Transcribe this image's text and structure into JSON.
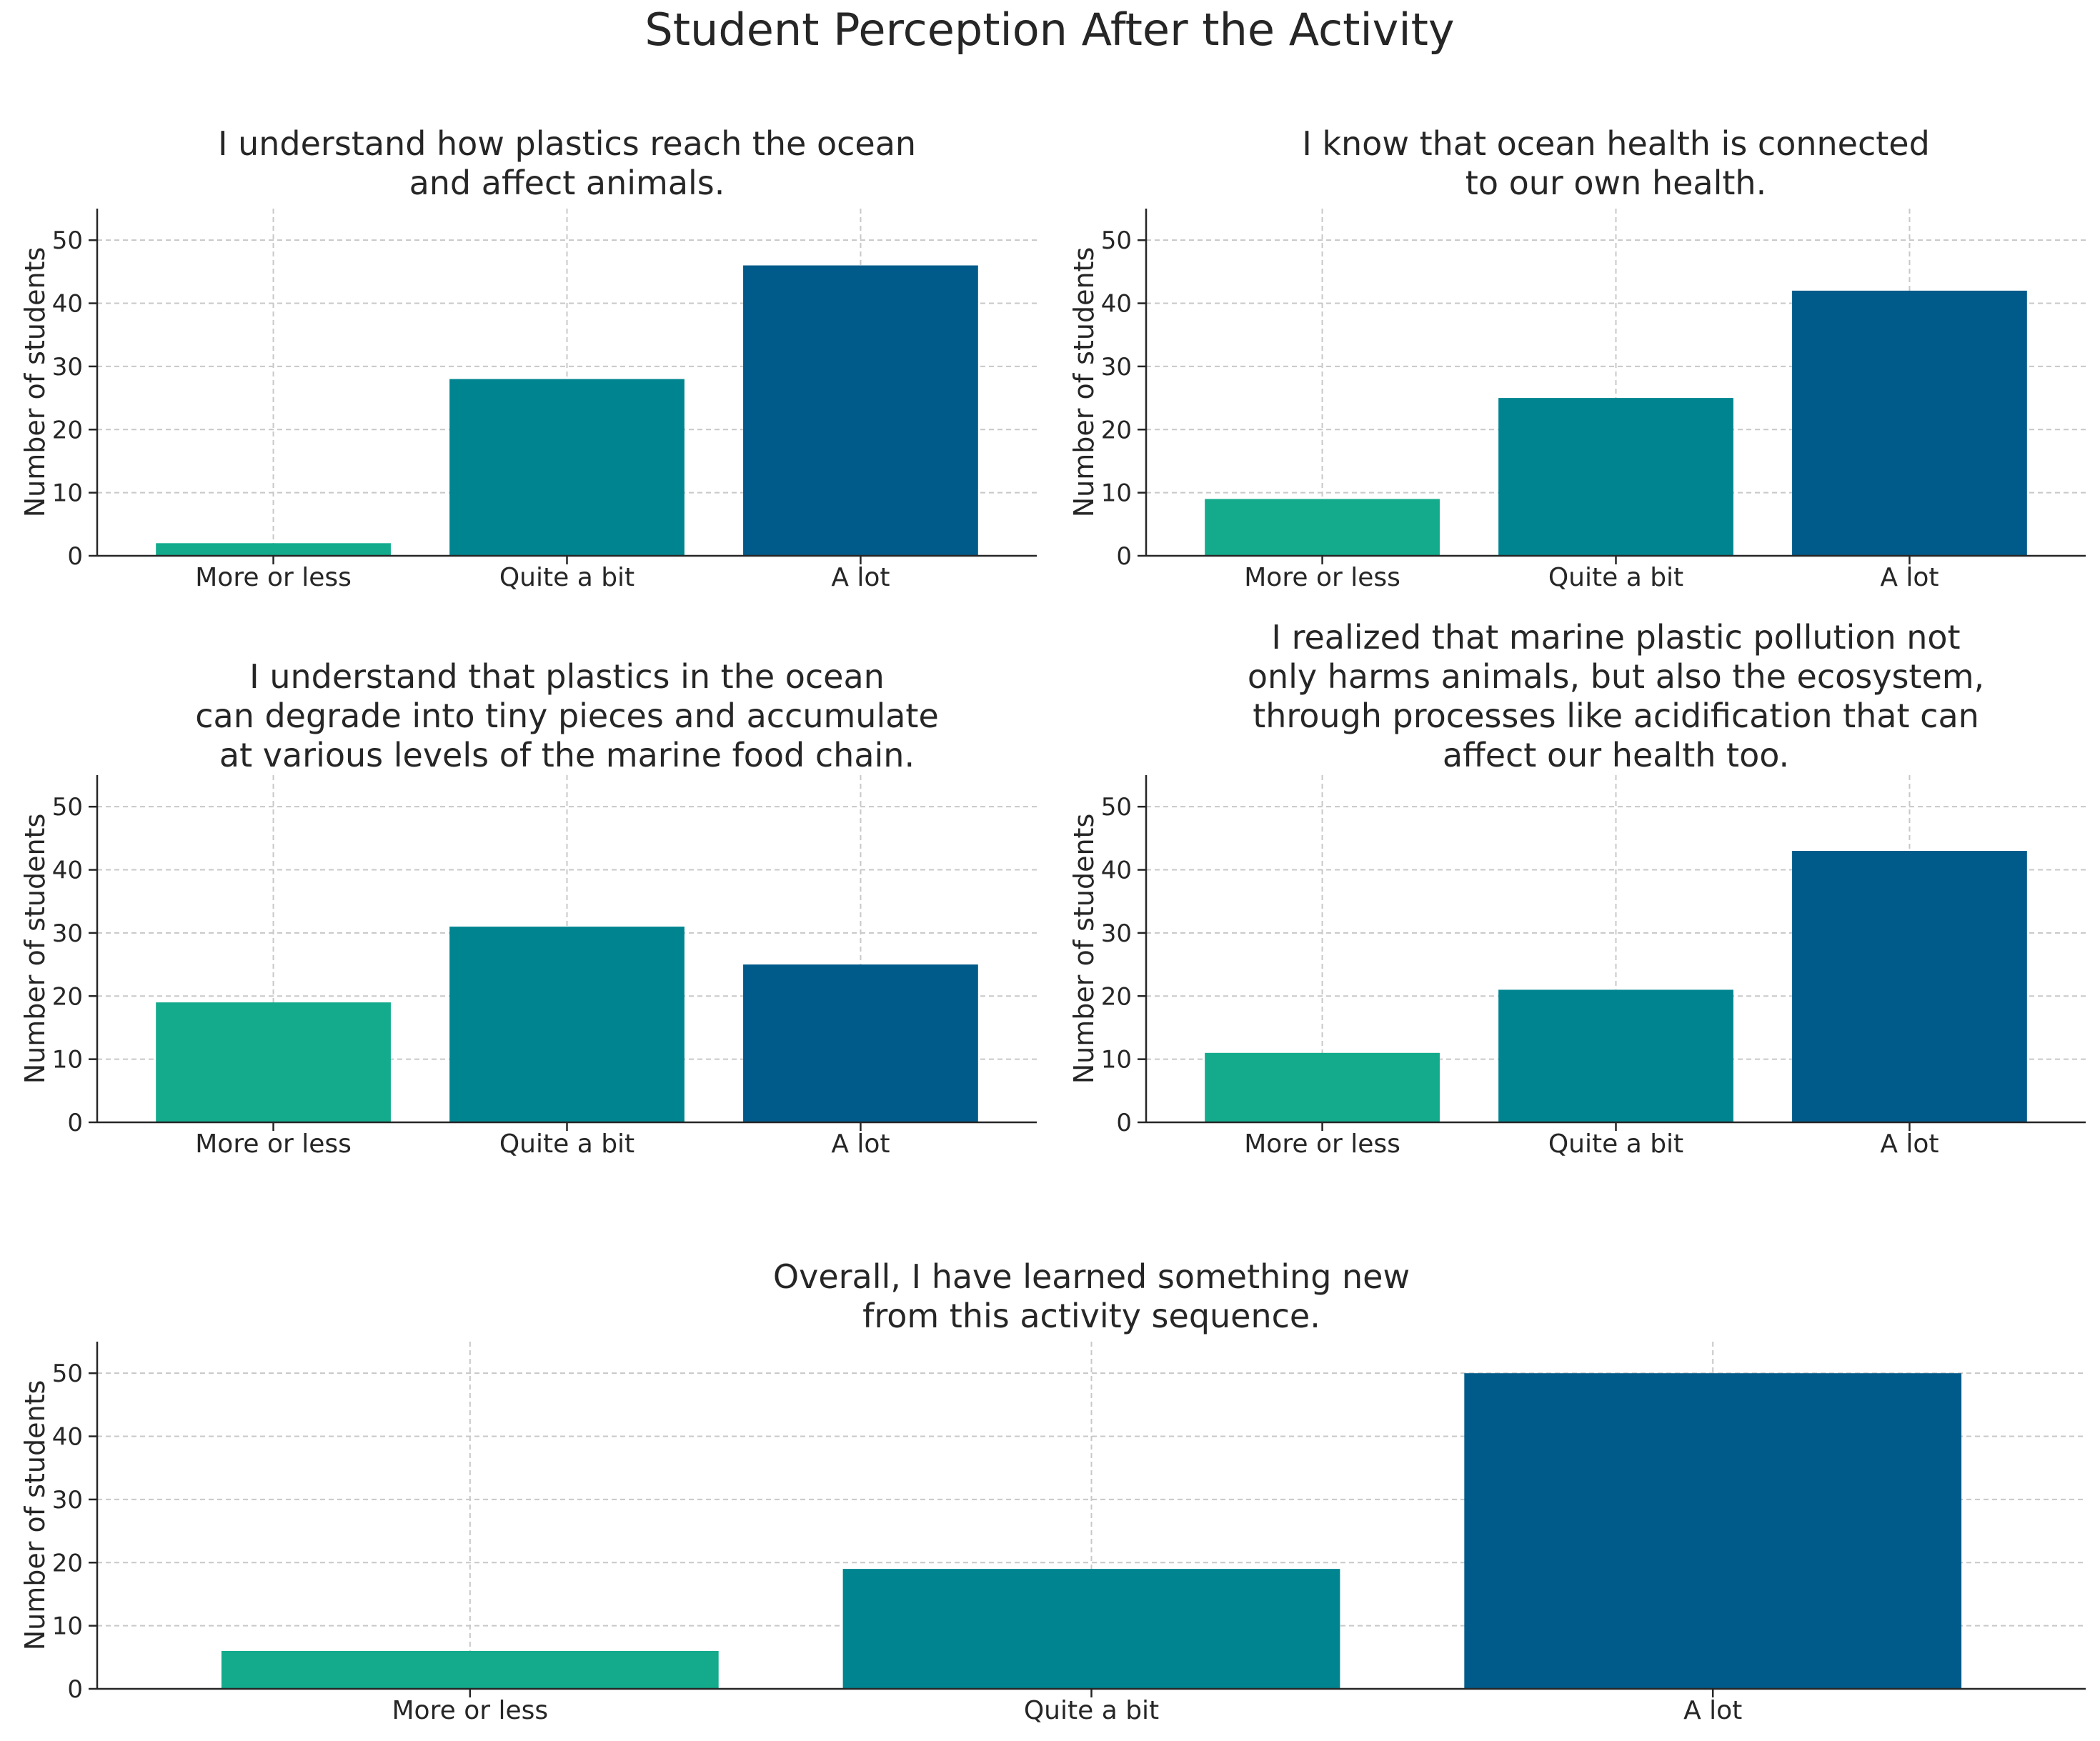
{
  "figure_title": "Student Perception After the Activity",
  "colors": {
    "more_or_less": "#13ab8c",
    "quite_a_bit": "#008590",
    "a_lot": "#005a8a",
    "grid": "#c8c8c8",
    "axis": "#262626"
  },
  "chart_data": [
    {
      "type": "bar",
      "title": "I understand how plastics reach the ocean\nand affect animals.",
      "categories": [
        "More or less",
        "Quite a bit",
        "A lot"
      ],
      "values": [
        2,
        28,
        46
      ],
      "xlabel": "",
      "ylabel": "Number of students",
      "ylim": [
        0,
        55
      ],
      "yticks": [
        0,
        10,
        20,
        30,
        40,
        50
      ],
      "grid": true
    },
    {
      "type": "bar",
      "title": "I know that ocean health is connected\nto our own health.",
      "categories": [
        "More or less",
        "Quite a bit",
        "A lot"
      ],
      "values": [
        9,
        25,
        42
      ],
      "xlabel": "",
      "ylabel": "Number of students",
      "ylim": [
        0,
        55
      ],
      "yticks": [
        0,
        10,
        20,
        30,
        40,
        50
      ],
      "grid": true
    },
    {
      "type": "bar",
      "title": "I understand that plastics in the ocean\ncan degrade into tiny pieces and accumulate\nat various levels of the marine food chain.",
      "categories": [
        "More or less",
        "Quite a bit",
        "A lot"
      ],
      "values": [
        19,
        31,
        25
      ],
      "xlabel": "",
      "ylabel": "Number of students",
      "ylim": [
        0,
        55
      ],
      "yticks": [
        0,
        10,
        20,
        30,
        40,
        50
      ],
      "grid": true
    },
    {
      "type": "bar",
      "title": "I realized that marine plastic pollution not\nonly harms animals, but also the ecosystem,\nthrough processes like acidification that can\naffect our health too.",
      "categories": [
        "More or less",
        "Quite a bit",
        "A lot"
      ],
      "values": [
        11,
        21,
        43
      ],
      "xlabel": "",
      "ylabel": "Number of students",
      "ylim": [
        0,
        55
      ],
      "yticks": [
        0,
        10,
        20,
        30,
        40,
        50
      ],
      "grid": true
    },
    {
      "type": "bar",
      "title": "Overall, I have learned something new\nfrom this activity sequence.",
      "categories": [
        "More or less",
        "Quite a bit",
        "A lot"
      ],
      "values": [
        6,
        19,
        50
      ],
      "xlabel": "",
      "ylabel": "Number of students",
      "ylim": [
        0,
        55
      ],
      "yticks": [
        0,
        10,
        20,
        30,
        40,
        50
      ],
      "grid": true
    }
  ]
}
